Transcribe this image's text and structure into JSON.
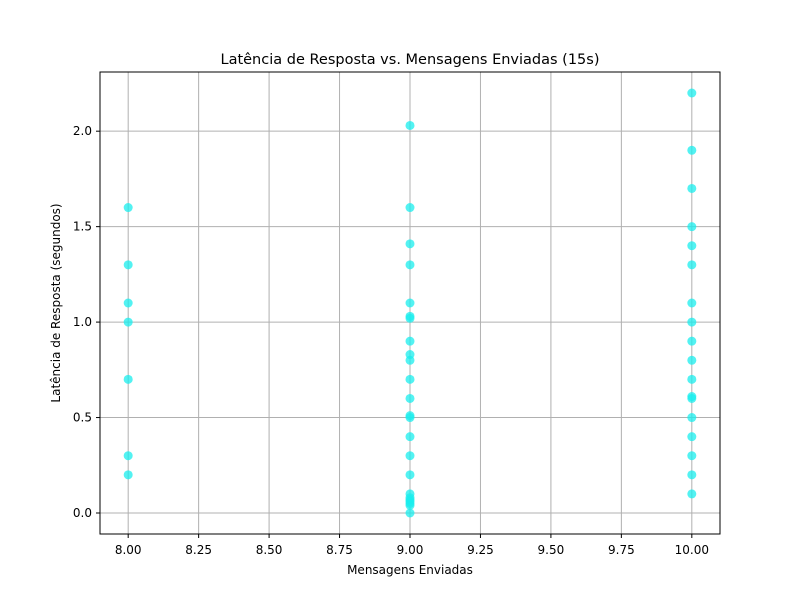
{
  "chart_data": {
    "type": "scatter",
    "title": "Latência de Resposta vs. Mensagens Enviadas (15s)",
    "xlabel": "Mensagens Enviadas",
    "ylabel": "Latência de Resposta (segundos)",
    "xlim": [
      7.9,
      10.1
    ],
    "ylim": [
      -0.11,
      2.31
    ],
    "xticks": [
      8.0,
      8.25,
      8.5,
      8.75,
      9.0,
      9.25,
      9.5,
      9.75,
      10.0
    ],
    "xtick_labels": [
      "8.00",
      "8.25",
      "8.50",
      "8.75",
      "9.00",
      "9.25",
      "9.50",
      "9.75",
      "10.00"
    ],
    "yticks": [
      0.0,
      0.5,
      1.0,
      1.5,
      2.0
    ],
    "ytick_labels": [
      "0.0",
      "0.5",
      "1.0",
      "1.5",
      "2.0"
    ],
    "grid": true,
    "marker_color": "#1aeeee",
    "series": [
      {
        "x": [
          8,
          8,
          8,
          8,
          8,
          8,
          8,
          9,
          9,
          9,
          9,
          9,
          9,
          9,
          9,
          9,
          9,
          9,
          9,
          9,
          9,
          9,
          9,
          9,
          9,
          9,
          9,
          9,
          9,
          9,
          9,
          10,
          10,
          10,
          10,
          10,
          10,
          10,
          10,
          10,
          10,
          10,
          10,
          10,
          10,
          10,
          10,
          10,
          10
        ],
        "y": [
          1.6,
          1.3,
          1.1,
          1.0,
          0.7,
          0.3,
          0.2,
          2.03,
          1.6,
          1.41,
          1.3,
          1.1,
          1.03,
          1.02,
          0.9,
          0.83,
          0.8,
          0.7,
          0.6,
          0.51,
          0.5,
          0.4,
          0.3,
          0.2,
          0.1,
          0.08,
          0.07,
          0.06,
          0.05,
          0.04,
          0.0,
          2.2,
          1.9,
          1.7,
          1.5,
          1.4,
          1.3,
          1.1,
          1.0,
          0.9,
          0.8,
          0.7,
          0.61,
          0.6,
          0.5,
          0.4,
          0.3,
          0.2,
          0.1
        ]
      }
    ]
  }
}
